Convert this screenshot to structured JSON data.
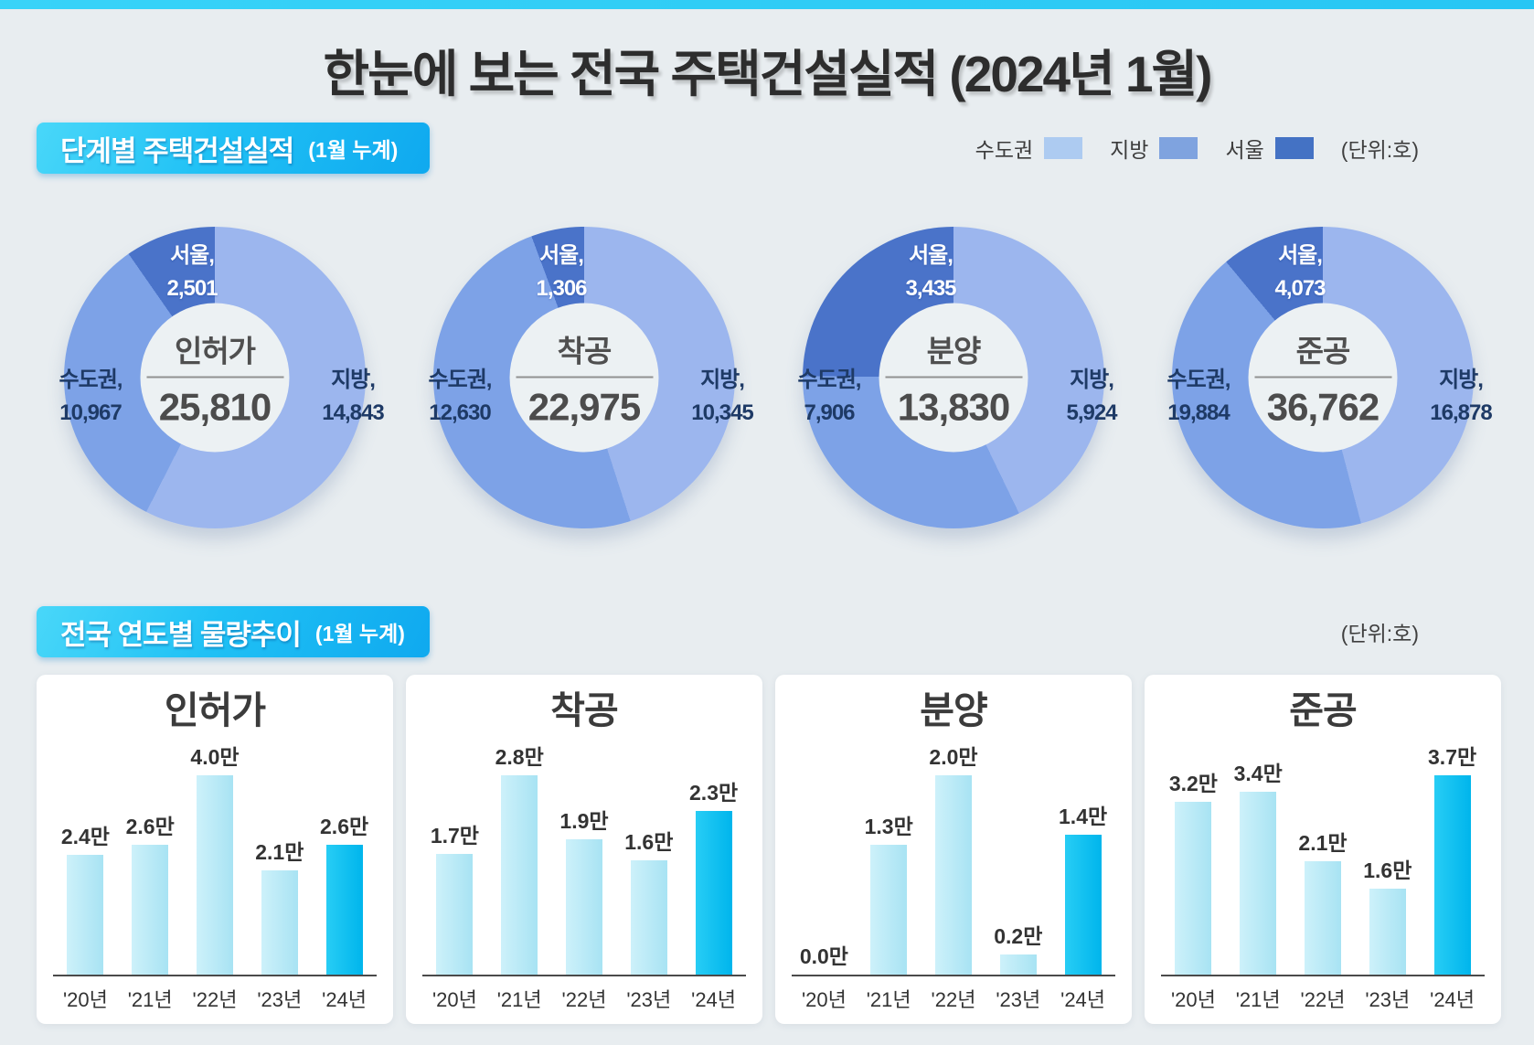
{
  "page": {
    "title": "한눈에 보는 전국 주택건설실적 (2024년 1월)",
    "background_color": "#e8edf0",
    "accent_strip_color": "#38d3f8"
  },
  "section1": {
    "title": "단계별 주택건설실적",
    "subtitle": "(1월 누계)"
  },
  "legend": {
    "items": [
      {
        "label": "수도권",
        "color": "#adcbf1"
      },
      {
        "label": "지방",
        "color": "#7fa3df"
      },
      {
        "label": "서울",
        "color": "#4472c4"
      }
    ],
    "unit_label": "(단위:호)"
  },
  "section2": {
    "title": "전국 연도별 물량추이",
    "subtitle": "(1월 누계)",
    "unit_label": "(단위:호)"
  },
  "chart_data": {
    "donuts": [
      {
        "type": "pie",
        "title": "인허가",
        "total": 25810,
        "total_label": "25,810",
        "slices": [
          {
            "name": "지방",
            "label": "지방,",
            "value": 14843,
            "value_label": "14,843",
            "arc_value": 14843,
            "color": "#9cb6ee"
          },
          {
            "name": "수도권",
            "label": "수도권,",
            "value": 10967,
            "value_label": "10,967",
            "arc_value": 8466,
            "color": "#7da2e7"
          },
          {
            "name": "서울",
            "label": "서울,",
            "value": 2501,
            "value_label": "2,501",
            "arc_value": 2501,
            "color": "#4a73c9"
          }
        ]
      },
      {
        "type": "pie",
        "title": "착공",
        "total": 22975,
        "total_label": "22,975",
        "slices": [
          {
            "name": "지방",
            "label": "지방,",
            "value": 10345,
            "value_label": "10,345",
            "arc_value": 10345,
            "color": "#9cb6ee"
          },
          {
            "name": "수도권",
            "label": "수도권,",
            "value": 12630,
            "value_label": "12,630",
            "arc_value": 11324,
            "color": "#7da2e7"
          },
          {
            "name": "서울",
            "label": "서울,",
            "value": 1306,
            "value_label": "1,306",
            "arc_value": 1306,
            "color": "#4a73c9"
          }
        ]
      },
      {
        "type": "pie",
        "title": "분양",
        "total": 13830,
        "total_label": "13,830",
        "slices": [
          {
            "name": "지방",
            "label": "지방,",
            "value": 5924,
            "value_label": "5,924",
            "arc_value": 5924,
            "color": "#9cb6ee"
          },
          {
            "name": "수도권",
            "label": "수도권,",
            "value": 7906,
            "value_label": "7,906",
            "arc_value": 4471,
            "color": "#7da2e7"
          },
          {
            "name": "서울",
            "label": "서울,",
            "value": 3435,
            "value_label": "3,435",
            "arc_value": 3435,
            "color": "#4a73c9"
          }
        ]
      },
      {
        "type": "pie",
        "title": "준공",
        "total": 36762,
        "total_label": "36,762",
        "slices": [
          {
            "name": "지방",
            "label": "지방,",
            "value": 16878,
            "value_label": "16,878",
            "arc_value": 16878,
            "color": "#9cb6ee"
          },
          {
            "name": "수도권",
            "label": "수도권,",
            "value": 19884,
            "value_label": "19,884",
            "arc_value": 15811,
            "color": "#7da2e7"
          },
          {
            "name": "서울",
            "label": "서울,",
            "value": 4073,
            "value_label": "4,073",
            "arc_value": 4073,
            "color": "#4a73c9"
          }
        ]
      }
    ],
    "bars": [
      {
        "type": "bar",
        "title": "인허가",
        "categories": [
          "'20년",
          "'21년",
          "'22년",
          "'23년",
          "'24년"
        ],
        "values": [
          2.4,
          2.6,
          4.0,
          2.1,
          2.6
        ],
        "value_labels": [
          "2.4만",
          "2.6만",
          "4.0만",
          "2.1만",
          "2.6만"
        ],
        "unit": "만",
        "highlight_index": 4
      },
      {
        "type": "bar",
        "title": "착공",
        "categories": [
          "'20년",
          "'21년",
          "'22년",
          "'23년",
          "'24년"
        ],
        "values": [
          1.7,
          2.8,
          1.9,
          1.6,
          2.3
        ],
        "value_labels": [
          "1.7만",
          "2.8만",
          "1.9만",
          "1.6만",
          "2.3만"
        ],
        "unit": "만",
        "highlight_index": 4
      },
      {
        "type": "bar",
        "title": "분양",
        "categories": [
          "'20년",
          "'21년",
          "'22년",
          "'23년",
          "'24년"
        ],
        "values": [
          0.0,
          1.3,
          2.0,
          0.2,
          1.4
        ],
        "value_labels": [
          "0.0만",
          "1.3만",
          "2.0만",
          "0.2만",
          "1.4만"
        ],
        "unit": "만",
        "highlight_index": 4
      },
      {
        "type": "bar",
        "title": "준공",
        "categories": [
          "'20년",
          "'21년",
          "'22년",
          "'23년",
          "'24년"
        ],
        "values": [
          3.2,
          3.4,
          2.1,
          1.6,
          3.7
        ],
        "value_labels": [
          "3.2만",
          "3.4만",
          "2.1만",
          "1.6만",
          "3.7만"
        ],
        "unit": "만",
        "highlight_index": 4
      }
    ],
    "bar_style": {
      "default_gradient": [
        "#cdf1fa",
        "#a8e3f3"
      ],
      "highlight_gradient": [
        "#27cdf5",
        "#00b5ec"
      ]
    }
  }
}
